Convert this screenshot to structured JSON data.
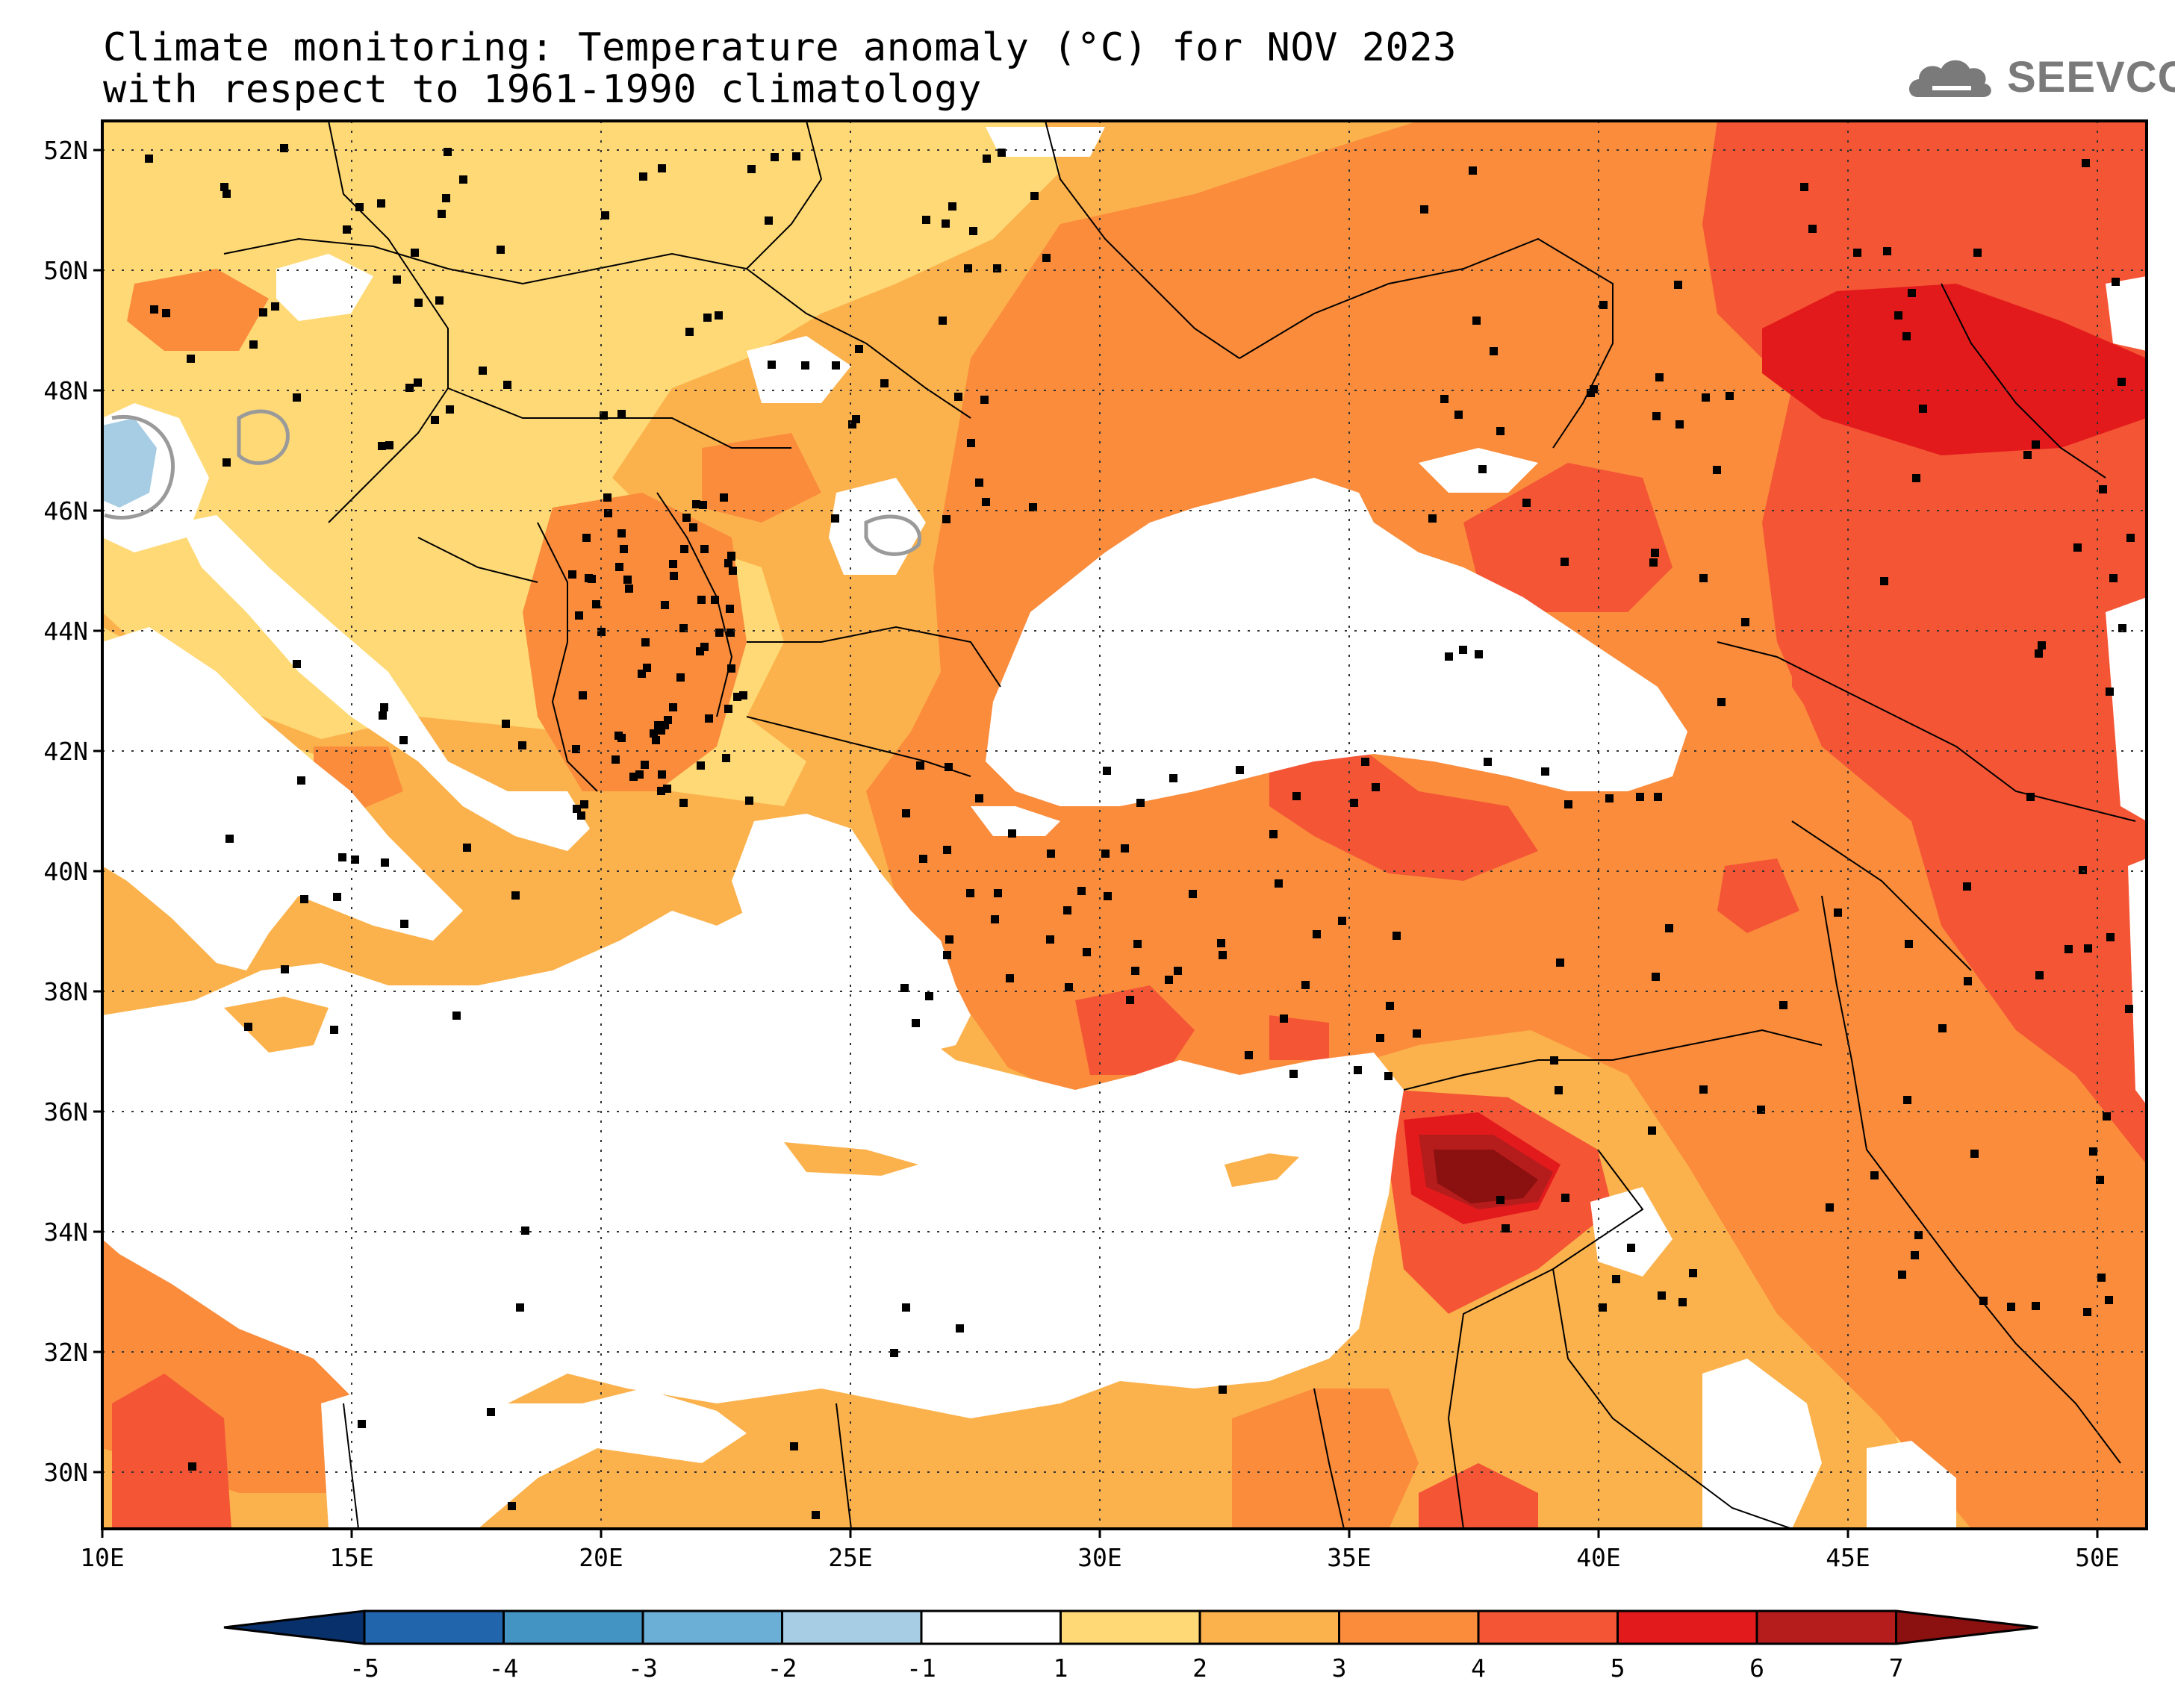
{
  "title": {
    "line1": "Climate monitoring: Temperature anomaly (°C) for NOV 2023",
    "line2": "with respect to 1961-1990 climatology"
  },
  "logo": {
    "text": "SEEVCCC",
    "icon": "cloud-logo-icon"
  },
  "map": {
    "projection": "lat-lon",
    "lon_range": [
      10,
      51
    ],
    "lat_range": [
      29,
      52.5
    ],
    "lon_ticks": [
      "10E",
      "15E",
      "20E",
      "25E",
      "30E",
      "35E",
      "40E",
      "45E",
      "50E"
    ],
    "lat_ticks": [
      "52N",
      "50N",
      "48N",
      "46N",
      "44N",
      "42N",
      "40N",
      "38N",
      "36N",
      "34N",
      "32N",
      "30N"
    ],
    "gridlines": "dotted",
    "stations": "black square markers"
  },
  "colorbar": {
    "labels": [
      "-5",
      "-4",
      "-3",
      "-2",
      "-1",
      "1",
      "2",
      "3",
      "4",
      "5",
      "6",
      "7"
    ],
    "colors": [
      "#08306b",
      "#2166ac",
      "#4393c3",
      "#6baed6",
      "#a6cde3",
      "#ffffff",
      "#fed976",
      "#fcb24c",
      "#fa8c3c",
      "#f45535",
      "#e31a1c",
      "#b51c1c",
      "#8b1010"
    ],
    "extend": "both",
    "units": "°C"
  },
  "colors": {
    "ocean": "#ffffff",
    "c1_2": "#fed976",
    "c2_3": "#fcb24c",
    "c3_4": "#fa8c3c",
    "c4_5": "#f45535",
    "c5_6": "#e31a1c",
    "c6_7": "#b51c1c",
    "c7p": "#8b1010",
    "neg": "#a6cde3",
    "neg2": "#6baed6"
  }
}
